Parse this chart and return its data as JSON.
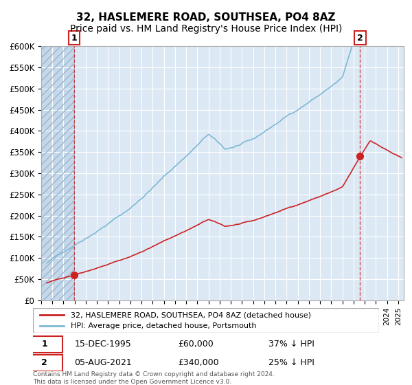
{
  "title": "32, HASLEMERE ROAD, SOUTHSEA, PO4 8AZ",
  "subtitle": "Price paid vs. HM Land Registry's House Price Index (HPI)",
  "title_fontsize": 11,
  "subtitle_fontsize": 10,
  "ylim": [
    0,
    600000
  ],
  "yticks": [
    0,
    50000,
    100000,
    150000,
    200000,
    250000,
    300000,
    350000,
    400000,
    450000,
    500000,
    550000,
    600000
  ],
  "ylabel_format": "£{0}K",
  "hpi_color": "#7eb8d4",
  "price_color": "#cc2222",
  "dot_color": "#cc2222",
  "bg_color": "#dce9f5",
  "hatch_color": "#b0c8e0",
  "grid_color": "#ffffff",
  "legend_label_price": "32, HASLEMERE ROAD, SOUTHSEA, PO4 8AZ (detached house)",
  "legend_label_hpi": "HPI: Average price, detached house, Portsmouth",
  "sale1_date": "15-DEC-1995",
  "sale1_price": 60000,
  "sale1_note": "37% ↓ HPI",
  "sale1_year": 1995.96,
  "sale2_date": "05-AUG-2021",
  "sale2_price": 340000,
  "sale2_note": "25% ↓ HPI",
  "sale2_year": 2021.59,
  "footnote": "Contains HM Land Registry data © Crown copyright and database right 2024.\nThis data is licensed under the Open Government Licence v3.0.",
  "xmin": 1993.0,
  "xmax": 2025.5
}
